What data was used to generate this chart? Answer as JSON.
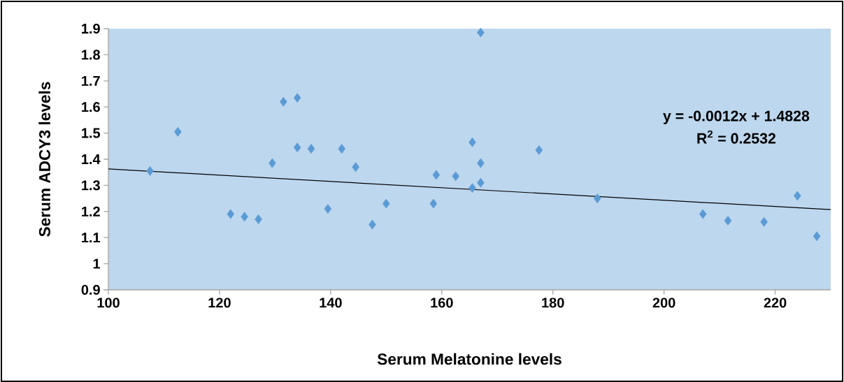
{
  "chart_data": {
    "type": "scatter",
    "xlabel": "Serum Melatonine levels",
    "ylabel": "Serum ADCY3 levels",
    "xlim": [
      100,
      230
    ],
    "ylim": [
      0.9,
      1.9
    ],
    "xticks": [
      100,
      120,
      140,
      160,
      180,
      200,
      220
    ],
    "yticks": [
      0.9,
      1,
      1.1,
      1.2,
      1.3,
      1.4,
      1.5,
      1.6,
      1.7,
      1.8,
      1.9
    ],
    "marker": "diamond",
    "grid": false,
    "series": [
      {
        "color": "#5b9bd5",
        "x": [
          107.5,
          112.5,
          122,
          124.5,
          127,
          129.5,
          131.5,
          134,
          134,
          136.5,
          139.5,
          142,
          144.5,
          147.5,
          150,
          158.5,
          159,
          162.5,
          165.5,
          165.5,
          167,
          167,
          167,
          177.5,
          188,
          207,
          211.5,
          218,
          224,
          227.5
        ],
        "values": [
          1.355,
          1.505,
          1.19,
          1.18,
          1.17,
          1.385,
          1.62,
          1.635,
          1.445,
          1.44,
          1.21,
          1.44,
          1.37,
          1.15,
          1.23,
          1.23,
          1.34,
          1.335,
          1.29,
          1.465,
          1.885,
          1.385,
          1.31,
          1.435,
          1.25,
          1.19,
          1.165,
          1.16,
          1.26,
          1.105
        ]
      },
      {
        "type": "line",
        "color": "#000000",
        "marker": "none",
        "x": [
          100,
          230
        ],
        "values": [
          1.363,
          1.207
        ]
      }
    ],
    "annotations": [
      "y = -0.0012x + 1.4828",
      "R$^{2}$ = 0.2532"
    ]
  }
}
